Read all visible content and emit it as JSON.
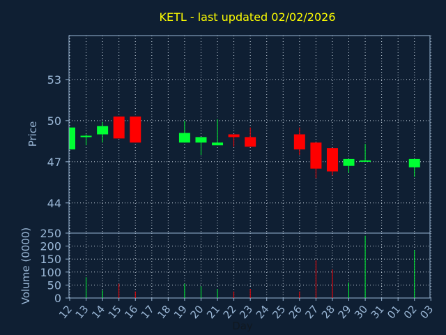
{
  "chart_data": {
    "type": "candlestick",
    "title": "KETL - last updated 02/02/2026",
    "xlabel": "Day",
    "x_ticks": [
      "12",
      "13",
      "14",
      "15",
      "16",
      "17",
      "18",
      "19",
      "20",
      "21",
      "22",
      "23",
      "24",
      "25",
      "26",
      "27",
      "28",
      "29",
      "30",
      "31",
      "01",
      "02",
      "03"
    ],
    "price_panel": {
      "ylabel": "Price",
      "ylim": [
        41.8,
        56.2
      ],
      "yticks": [
        44,
        47,
        50,
        53
      ]
    },
    "volume_panel": {
      "ylabel": "Volume (0000)",
      "ylim": [
        0,
        250
      ],
      "yticks": [
        0,
        50,
        100,
        150,
        200,
        250
      ]
    },
    "candles": [
      {
        "day": "12",
        "open": 47.9,
        "close": 49.5,
        "high": 49.5,
        "low": 47.9,
        "volume": 0
      },
      {
        "day": "13",
        "open": 48.8,
        "close": 48.9,
        "high": 49.0,
        "low": 48.2,
        "volume": 80
      },
      {
        "day": "14",
        "open": 49.0,
        "close": 49.6,
        "high": 49.9,
        "low": 48.4,
        "volume": 30
      },
      {
        "day": "15",
        "open": 50.3,
        "close": 48.7,
        "high": 50.3,
        "low": 48.7,
        "volume": 55
      },
      {
        "day": "16",
        "open": 50.3,
        "close": 48.4,
        "high": 50.3,
        "low": 48.4,
        "volume": 25
      },
      {
        "day": "19",
        "open": 48.4,
        "close": 49.1,
        "high": 50.0,
        "low": 48.4,
        "volume": 55
      },
      {
        "day": "20",
        "open": 48.4,
        "close": 48.8,
        "high": 48.8,
        "low": 47.5,
        "volume": 45
      },
      {
        "day": "21",
        "open": 48.2,
        "close": 48.4,
        "high": 50.1,
        "low": 48.2,
        "volume": 35
      },
      {
        "day": "22",
        "open": 49.0,
        "close": 48.8,
        "high": 49.0,
        "low": 48.1,
        "volume": 25
      },
      {
        "day": "23",
        "open": 48.8,
        "close": 48.1,
        "high": 49.5,
        "low": 48.1,
        "volume": 35
      },
      {
        "day": "26",
        "open": 49.0,
        "close": 47.9,
        "high": 49.5,
        "low": 47.5,
        "volume": 25
      },
      {
        "day": "27",
        "open": 48.4,
        "close": 46.5,
        "high": 48.4,
        "low": 45.8,
        "volume": 145
      },
      {
        "day": "28",
        "open": 48.0,
        "close": 46.3,
        "high": 48.0,
        "low": 46.0,
        "volume": 110
      },
      {
        "day": "29",
        "open": 46.7,
        "close": 47.2,
        "high": 47.2,
        "low": 46.2,
        "volume": 60
      },
      {
        "day": "30",
        "open": 47.0,
        "close": 47.1,
        "high": 48.3,
        "low": 47.0,
        "volume": 240
      },
      {
        "day": "02",
        "open": 46.6,
        "close": 47.2,
        "high": 47.2,
        "low": 45.9,
        "volume": 185
      }
    ],
    "colors": {
      "background": "#0f1f33",
      "plot_border": "#9ab7d6",
      "grid": "#c8d4e0",
      "up": "#00ff33",
      "down": "#ff0000",
      "title": "#ffff00",
      "text": "#9ab7d6",
      "xlabel": "#101820"
    },
    "grid": true,
    "legend": "none"
  }
}
